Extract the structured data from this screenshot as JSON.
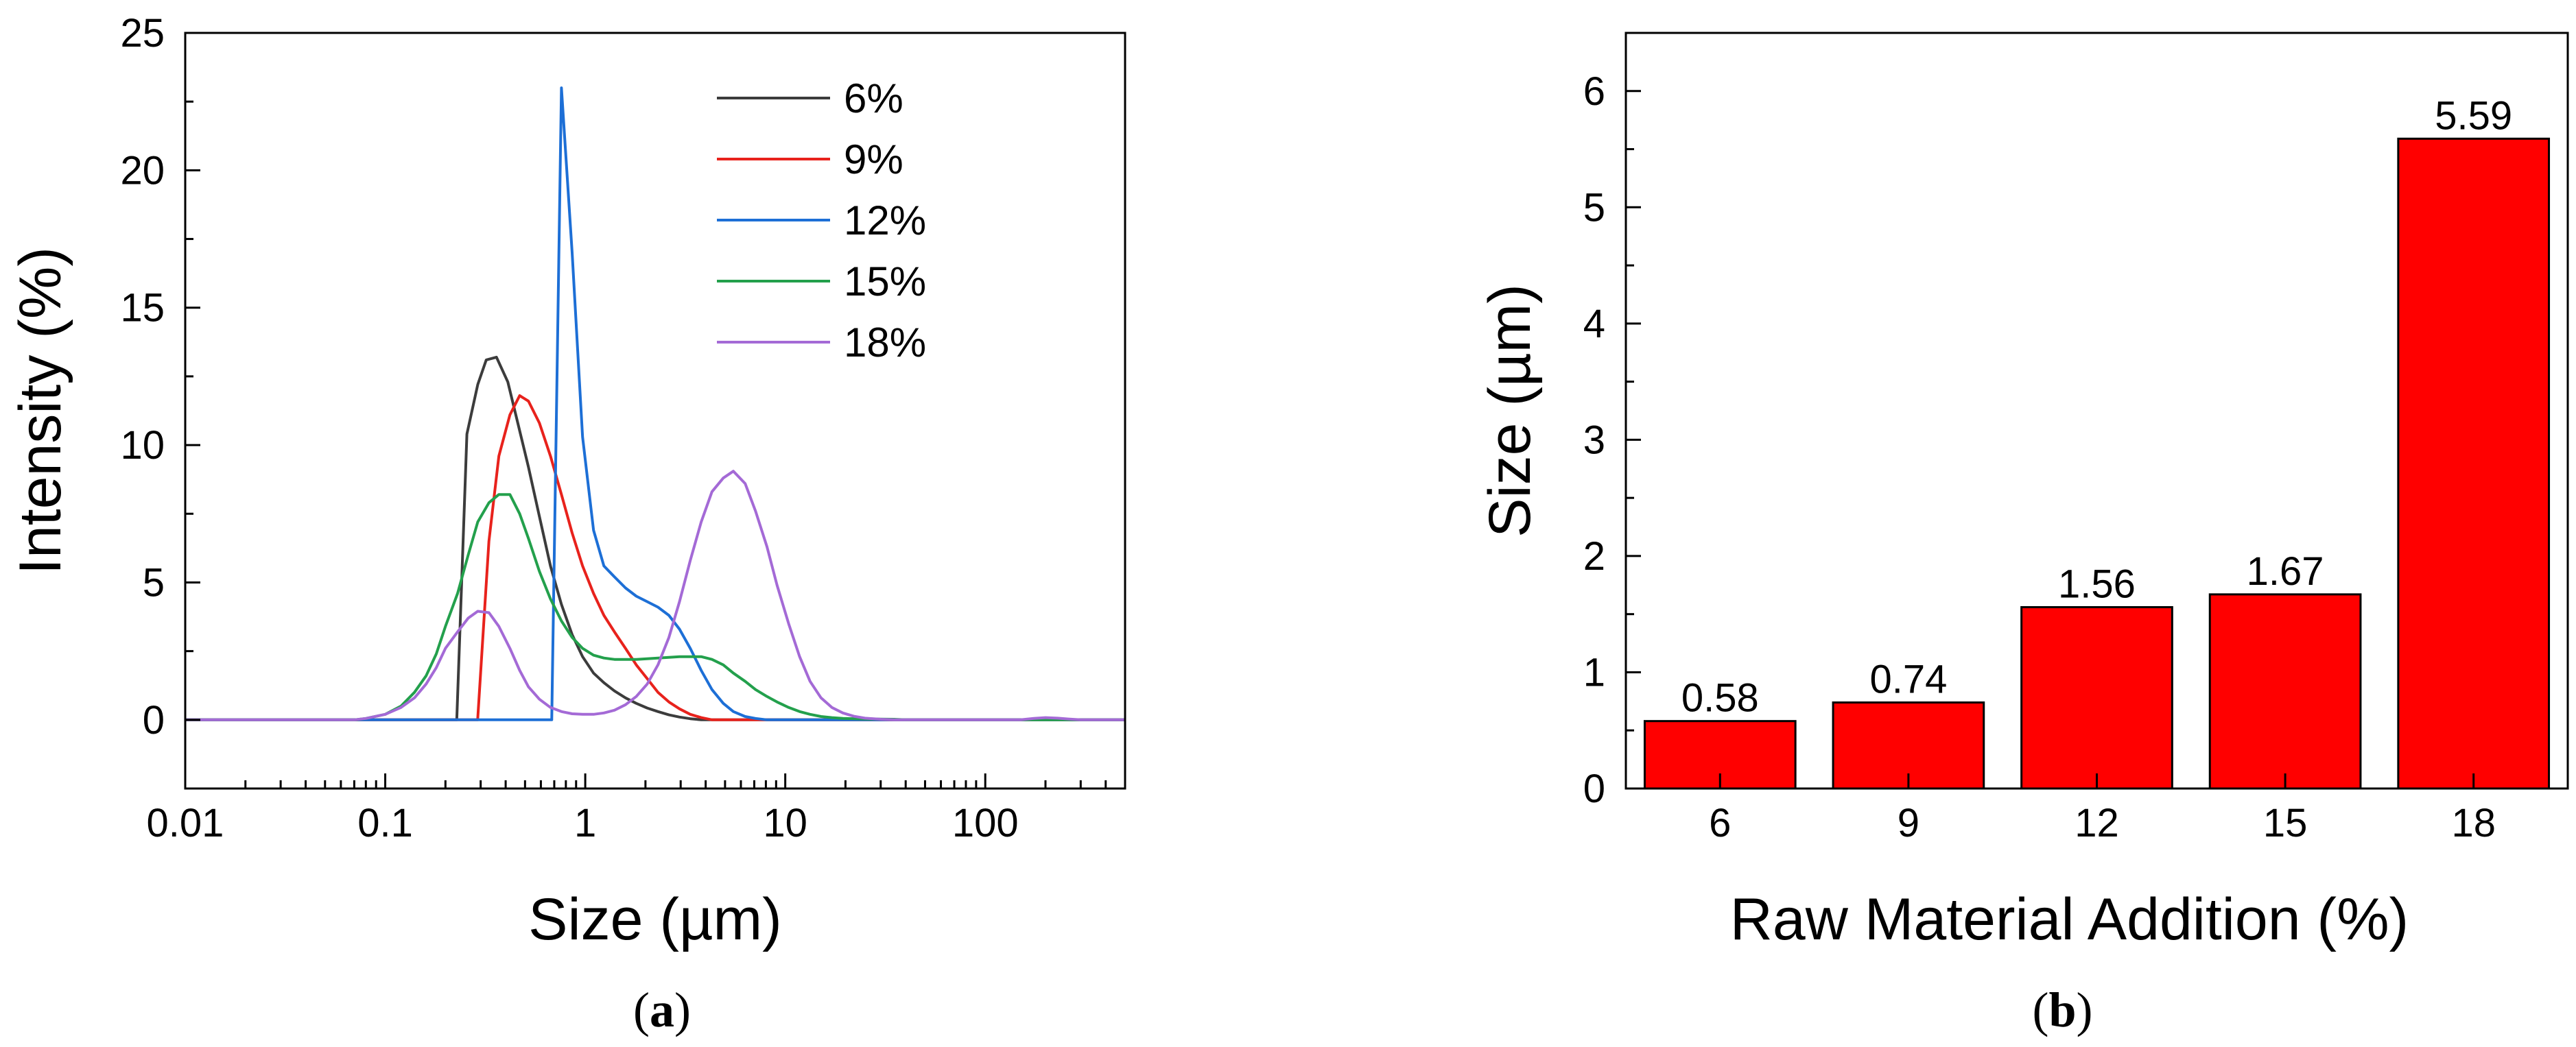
{
  "chart_data": [
    {
      "type": "line",
      "panel_label_open": "(",
      "panel_label_letter": "a",
      "panel_label_close": ")",
      "xlabel": "Size (µm)",
      "ylabel": "Intensity (%)",
      "xscale": "log",
      "xlim": [
        0.01,
        500
      ],
      "ylim": [
        -2.5,
        25
      ],
      "xticks": [
        0.01,
        0.1,
        1,
        10,
        100
      ],
      "xtick_labels": [
        "0.01",
        "0.1",
        "1",
        "10",
        "100"
      ],
      "yticks": [
        0,
        5,
        10,
        15,
        20,
        25
      ],
      "ytick_labels": [
        "0",
        "5",
        "10",
        "15",
        "20",
        "25"
      ],
      "legend_position": "top-right",
      "series": [
        {
          "name": "6%",
          "color": "#3c3c3c",
          "points": [
            [
              0.01,
              0
            ],
            [
              0.228,
              0
            ],
            [
              0.228,
              0.05
            ],
            [
              0.256,
              10.4
            ],
            [
              0.29,
              12.2
            ],
            [
              0.32,
              13.1
            ],
            [
              0.36,
              13.2
            ],
            [
              0.41,
              12.3
            ],
            [
              0.46,
              10.8
            ],
            [
              0.52,
              9.2
            ],
            [
              0.59,
              7.4
            ],
            [
              0.67,
              5.6
            ],
            [
              0.76,
              4.2
            ],
            [
              0.86,
              3.1
            ],
            [
              0.97,
              2.3
            ],
            [
              1.1,
              1.7
            ],
            [
              1.24,
              1.35
            ],
            [
              1.4,
              1.05
            ],
            [
              1.59,
              0.8
            ],
            [
              1.8,
              0.6
            ],
            [
              2.04,
              0.43
            ],
            [
              2.31,
              0.3
            ],
            [
              2.62,
              0.18
            ],
            [
              2.96,
              0.1
            ],
            [
              3.35,
              0.04
            ],
            [
              3.8,
              0
            ],
            [
              500,
              0
            ]
          ]
        },
        {
          "name": "9%",
          "color": "#e8221c",
          "points": [
            [
              0.01,
              0
            ],
            [
              0.29,
              0
            ],
            [
              0.29,
              0.05
            ],
            [
              0.33,
              6.5
            ],
            [
              0.37,
              9.6
            ],
            [
              0.42,
              11.1
            ],
            [
              0.47,
              11.8
            ],
            [
              0.52,
              11.6
            ],
            [
              0.59,
              10.8
            ],
            [
              0.67,
              9.6
            ],
            [
              0.76,
              8.2
            ],
            [
              0.86,
              6.8
            ],
            [
              0.97,
              5.6
            ],
            [
              1.1,
              4.6
            ],
            [
              1.24,
              3.8
            ],
            [
              1.4,
              3.2
            ],
            [
              1.59,
              2.6
            ],
            [
              1.8,
              2.0
            ],
            [
              2.04,
              1.5
            ],
            [
              2.31,
              1.0
            ],
            [
              2.62,
              0.65
            ],
            [
              2.96,
              0.4
            ],
            [
              3.35,
              0.2
            ],
            [
              3.8,
              0.08
            ],
            [
              4.3,
              0
            ],
            [
              500,
              0
            ]
          ]
        },
        {
          "name": "12%",
          "color": "#1d6fd6",
          "points": [
            [
              0.01,
              0
            ],
            [
              0.68,
              0
            ],
            [
              0.68,
              0.05
            ],
            [
              0.76,
              23
            ],
            [
              0.86,
              17
            ],
            [
              0.97,
              10.3
            ],
            [
              1.1,
              6.9
            ],
            [
              1.24,
              5.6
            ],
            [
              1.4,
              5.2
            ],
            [
              1.59,
              4.8
            ],
            [
              1.8,
              4.5
            ],
            [
              2.04,
              4.3
            ],
            [
              2.31,
              4.1
            ],
            [
              2.62,
              3.8
            ],
            [
              2.96,
              3.3
            ],
            [
              3.35,
              2.6
            ],
            [
              3.8,
              1.8
            ],
            [
              4.3,
              1.1
            ],
            [
              4.9,
              0.6
            ],
            [
              5.5,
              0.3
            ],
            [
              6.3,
              0.12
            ],
            [
              7.1,
              0.05
            ],
            [
              8.1,
              0
            ],
            [
              500,
              0
            ]
          ]
        },
        {
          "name": "15%",
          "color": "#23a04c",
          "points": [
            [
              0.01,
              0
            ],
            [
              0.07,
              0
            ],
            [
              0.08,
              0.05
            ],
            [
              0.1,
              0.2
            ],
            [
              0.12,
              0.5
            ],
            [
              0.14,
              1.0
            ],
            [
              0.16,
              1.6
            ],
            [
              0.18,
              2.4
            ],
            [
              0.2,
              3.4
            ],
            [
              0.23,
              4.6
            ],
            [
              0.26,
              6.0
            ],
            [
              0.29,
              7.2
            ],
            [
              0.33,
              7.9
            ],
            [
              0.37,
              8.2
            ],
            [
              0.42,
              8.2
            ],
            [
              0.47,
              7.5
            ],
            [
              0.52,
              6.6
            ],
            [
              0.59,
              5.4
            ],
            [
              0.67,
              4.4
            ],
            [
              0.76,
              3.6
            ],
            [
              0.86,
              3.0
            ],
            [
              0.97,
              2.6
            ],
            [
              1.1,
              2.35
            ],
            [
              1.24,
              2.25
            ],
            [
              1.4,
              2.2
            ],
            [
              1.8,
              2.2
            ],
            [
              2.31,
              2.25
            ],
            [
              2.96,
              2.3
            ],
            [
              3.8,
              2.3
            ],
            [
              4.3,
              2.2
            ],
            [
              4.9,
              2.0
            ],
            [
              5.5,
              1.7
            ],
            [
              6.3,
              1.4
            ],
            [
              7.1,
              1.1
            ],
            [
              8.1,
              0.85
            ],
            [
              9.1,
              0.65
            ],
            [
              10.4,
              0.45
            ],
            [
              11.8,
              0.3
            ],
            [
              13.3,
              0.2
            ],
            [
              15.1,
              0.12
            ],
            [
              17.1,
              0.08
            ],
            [
              19.4,
              0.05
            ],
            [
              25,
              0.03
            ],
            [
              35,
              0.02
            ],
            [
              40,
              0
            ],
            [
              500,
              0
            ]
          ]
        },
        {
          "name": "18%",
          "color": "#a46ad6",
          "points": [
            [
              0.01,
              0
            ],
            [
              0.07,
              0
            ],
            [
              0.08,
              0.05
            ],
            [
              0.1,
              0.2
            ],
            [
              0.12,
              0.45
            ],
            [
              0.14,
              0.8
            ],
            [
              0.16,
              1.3
            ],
            [
              0.18,
              1.9
            ],
            [
              0.2,
              2.6
            ],
            [
              0.23,
              3.2
            ],
            [
              0.26,
              3.7
            ],
            [
              0.29,
              3.95
            ],
            [
              0.33,
              3.9
            ],
            [
              0.37,
              3.4
            ],
            [
              0.42,
              2.6
            ],
            [
              0.47,
              1.8
            ],
            [
              0.52,
              1.2
            ],
            [
              0.59,
              0.75
            ],
            [
              0.67,
              0.45
            ],
            [
              0.76,
              0.3
            ],
            [
              0.86,
              0.22
            ],
            [
              0.97,
              0.2
            ],
            [
              1.1,
              0.2
            ],
            [
              1.24,
              0.25
            ],
            [
              1.4,
              0.35
            ],
            [
              1.59,
              0.55
            ],
            [
              1.8,
              0.85
            ],
            [
              2.04,
              1.3
            ],
            [
              2.31,
              2.0
            ],
            [
              2.62,
              3.0
            ],
            [
              2.96,
              4.3
            ],
            [
              3.35,
              5.8
            ],
            [
              3.8,
              7.2
            ],
            [
              4.3,
              8.3
            ],
            [
              4.9,
              8.8
            ],
            [
              5.5,
              9.05
            ],
            [
              6.3,
              8.6
            ],
            [
              7.1,
              7.6
            ],
            [
              8.1,
              6.3
            ],
            [
              9.1,
              4.9
            ],
            [
              10.4,
              3.5
            ],
            [
              11.8,
              2.3
            ],
            [
              13.3,
              1.4
            ],
            [
              15.1,
              0.8
            ],
            [
              17.1,
              0.45
            ],
            [
              19.4,
              0.25
            ],
            [
              22,
              0.13
            ],
            [
              25,
              0.06
            ],
            [
              30,
              0.02
            ],
            [
              35,
              0
            ],
            [
              150,
              0
            ],
            [
              175,
              0.05
            ],
            [
              200,
              0.08
            ],
            [
              230,
              0.06
            ],
            [
              260,
              0.03
            ],
            [
              300,
              0
            ],
            [
              500,
              0
            ]
          ]
        }
      ]
    },
    {
      "type": "bar",
      "panel_label_open": "(",
      "panel_label_letter": "b",
      "panel_label_close": ")",
      "xlabel": "Raw Material Addition (%)",
      "ylabel": "Size (µm)",
      "ylim": [
        0,
        6.5
      ],
      "yticks": [
        0,
        1,
        2,
        3,
        4,
        5,
        6
      ],
      "ytick_labels": [
        "0",
        "1",
        "2",
        "3",
        "4",
        "5",
        "6"
      ],
      "bar_color": "#ff0000",
      "categories": [
        "6",
        "9",
        "12",
        "15",
        "18"
      ],
      "values": [
        0.58,
        0.74,
        1.56,
        1.67,
        5.59
      ],
      "value_labels": [
        "0.58",
        "0.74",
        "1.56",
        "1.67",
        "5.59"
      ]
    }
  ]
}
